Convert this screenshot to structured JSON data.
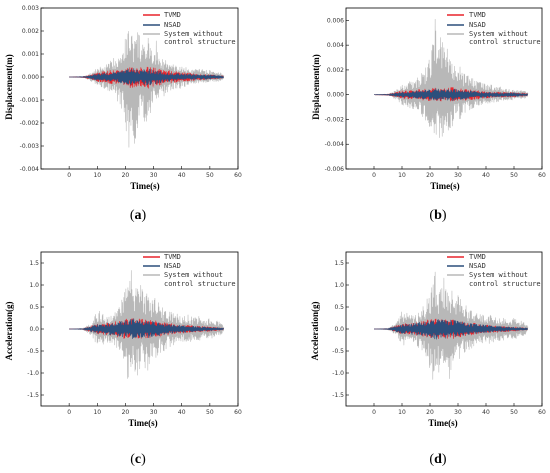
{
  "colors": {
    "tvmd": "#e8242b",
    "nsad": "#2c4f7c",
    "uncontrolled": "#b8b8b8",
    "axis": "#000000"
  },
  "chart_data": [
    {
      "type": "line",
      "panel": "a",
      "xlabel": "Time(s)",
      "ylabel": "Displacement(m)",
      "xlim": [
        -10,
        60
      ],
      "ylim": [
        -0.004,
        0.003
      ],
      "xticks": [
        0,
        10,
        20,
        30,
        40,
        50,
        60
      ],
      "xtick_labels": [
        "0",
        "10",
        "20",
        "30",
        "40",
        "50",
        "60"
      ],
      "yticks": [
        -0.004,
        -0.003,
        -0.002,
        -0.001,
        0.0,
        0.001,
        0.002,
        0.003
      ],
      "ytick_labels": [
        "-0.004",
        "-0.003",
        "-0.002",
        "-0.001",
        "0.000",
        "0.001",
        "0.002",
        "0.003"
      ],
      "legend_position": "top-right",
      "series": [
        {
          "name": "System without control structure",
          "color_key": "uncontrolled",
          "x": [
            0,
            5,
            8,
            10,
            12,
            14,
            16,
            18,
            19,
            20,
            21,
            22,
            23,
            24,
            25,
            26,
            27,
            28,
            29,
            30,
            31,
            32,
            34,
            36,
            38,
            40,
            42,
            44,
            46,
            48,
            50,
            52,
            54,
            55
          ],
          "max": [
            0.0,
            1e-05,
            0.0002,
            0.0004,
            0.0005,
            0.0006,
            0.0009,
            0.0012,
            0.0014,
            0.0018,
            0.0022,
            0.0023,
            0.0016,
            0.0021,
            0.0019,
            0.0015,
            0.0012,
            0.002,
            0.0011,
            0.0013,
            0.0016,
            0.001,
            0.0008,
            0.0006,
            0.0005,
            0.0005,
            0.0004,
            0.0003,
            0.0004,
            0.0003,
            0.0003,
            0.0002,
            0.0002,
            0.0001
          ],
          "min": [
            0.0,
            -1e-05,
            -0.0002,
            -0.0004,
            -0.0005,
            -0.0006,
            -0.0009,
            -0.0012,
            -0.0015,
            -0.002,
            -0.0034,
            -0.0025,
            -0.003,
            -0.0031,
            -0.002,
            -0.0017,
            -0.0024,
            -0.0022,
            -0.0016,
            -0.0012,
            -0.0013,
            -0.001,
            -0.0008,
            -0.0006,
            -0.0005,
            -0.0005,
            -0.0004,
            -0.0003,
            -0.0003,
            -0.0003,
            -0.0002,
            -0.0002,
            -0.0002,
            -0.0001
          ]
        },
        {
          "name": "TVMD",
          "color_key": "tvmd",
          "x": [
            0,
            5,
            8,
            10,
            15,
            20,
            22,
            25,
            28,
            30,
            35,
            40,
            45,
            50,
            55
          ],
          "max": [
            0.0,
            3e-05,
            0.0001,
            0.0002,
            0.0003,
            0.0004,
            0.0005,
            0.0004,
            0.0005,
            0.0004,
            0.0003,
            0.0002,
            0.00015,
            0.0001,
            5e-05
          ],
          "min": [
            0.0,
            -3e-05,
            -0.0001,
            -0.0002,
            -0.0003,
            -0.0004,
            -0.0005,
            -0.0004,
            -0.0005,
            -0.0004,
            -0.0003,
            -0.0002,
            -0.00015,
            -0.0001,
            -5e-05
          ]
        },
        {
          "name": "NSAD",
          "color_key": "nsad",
          "x": [
            0,
            5,
            8,
            10,
            15,
            20,
            22,
            25,
            28,
            30,
            35,
            40,
            45,
            50,
            55
          ],
          "max": [
            0.0,
            2e-05,
            8e-05,
            0.00015,
            0.0002,
            0.0003,
            0.0004,
            0.0003,
            0.0004,
            0.0003,
            0.0002,
            0.00015,
            0.0001,
            0.0001,
            4e-05
          ],
          "min": [
            0.0,
            -2e-05,
            -8e-05,
            -0.00015,
            -0.0002,
            -0.0003,
            -0.0004,
            -0.0003,
            -0.0004,
            -0.0003,
            -0.0002,
            -0.00015,
            -0.0001,
            -0.0001,
            -4e-05
          ]
        }
      ]
    },
    {
      "type": "line",
      "panel": "b",
      "xlabel": "Time(s)",
      "ylabel": "Displacement(m)",
      "xlim": [
        -10,
        60
      ],
      "ylim": [
        -0.006,
        0.007
      ],
      "xticks": [
        0,
        10,
        20,
        30,
        40,
        50,
        60
      ],
      "xtick_labels": [
        "0",
        "10",
        "20",
        "30",
        "40",
        "50",
        "60"
      ],
      "yticks": [
        -0.006,
        -0.004,
        -0.002,
        0.0,
        0.002,
        0.004,
        0.006
      ],
      "ytick_labels": [
        "-0.006",
        "-0.004",
        "-0.002",
        "0.000",
        "0.002",
        "0.004",
        "0.006"
      ],
      "legend_position": "top-right",
      "series": [
        {
          "name": "System without control structure",
          "color_key": "uncontrolled",
          "x": [
            0,
            5,
            8,
            10,
            12,
            14,
            16,
            18,
            19,
            20,
            21,
            22,
            23,
            24,
            25,
            26,
            27,
            28,
            29,
            30,
            31,
            32,
            34,
            36,
            38,
            40,
            42,
            44,
            46,
            48,
            50,
            52,
            54,
            55
          ],
          "max": [
            0.0,
            3e-05,
            0.0004,
            0.0008,
            0.001,
            0.0012,
            0.0015,
            0.002,
            0.0025,
            0.003,
            0.0045,
            0.0065,
            0.0042,
            0.005,
            0.0044,
            0.004,
            0.0028,
            0.003,
            0.0022,
            0.002,
            0.0025,
            0.0018,
            0.0015,
            0.0012,
            0.001,
            0.0009,
            0.0008,
            0.0007,
            0.0006,
            0.0005,
            0.0004,
            0.0004,
            0.0003,
            0.0002
          ],
          "min": [
            0.0,
            -3e-05,
            -0.0004,
            -0.0008,
            -0.001,
            -0.0012,
            -0.0015,
            -0.002,
            -0.0025,
            -0.003,
            -0.0035,
            -0.0043,
            -0.0033,
            -0.0042,
            -0.003,
            -0.0028,
            -0.0032,
            -0.0026,
            -0.002,
            -0.0018,
            -0.0022,
            -0.0015,
            -0.0013,
            -0.001,
            -0.0009,
            -0.0008,
            -0.0007,
            -0.0006,
            -0.0005,
            -0.0005,
            -0.0004,
            -0.0003,
            -0.0003,
            -0.0002
          ]
        },
        {
          "name": "TVMD",
          "color_key": "tvmd",
          "x": [
            0,
            5,
            8,
            10,
            15,
            20,
            22,
            25,
            28,
            30,
            35,
            40,
            45,
            50,
            55
          ],
          "max": [
            0.0,
            5e-05,
            0.0002,
            0.0003,
            0.0004,
            0.0005,
            0.0006,
            0.0005,
            0.0006,
            0.0005,
            0.0004,
            0.0003,
            0.0002,
            0.0002,
            0.0001
          ],
          "min": [
            0.0,
            -5e-05,
            -0.0002,
            -0.0003,
            -0.0004,
            -0.0005,
            -0.0006,
            -0.0005,
            -0.0006,
            -0.0005,
            -0.0004,
            -0.0003,
            -0.0002,
            -0.0002,
            -0.0001
          ]
        },
        {
          "name": "NSAD",
          "color_key": "nsad",
          "x": [
            0,
            5,
            8,
            10,
            15,
            20,
            22,
            25,
            28,
            30,
            35,
            40,
            45,
            50,
            55
          ],
          "max": [
            0.0,
            4e-05,
            0.00015,
            0.0002,
            0.0003,
            0.0004,
            0.0005,
            0.0004,
            0.0005,
            0.0004,
            0.0003,
            0.0002,
            0.00015,
            0.00015,
            8e-05
          ],
          "min": [
            0.0,
            -4e-05,
            -0.00015,
            -0.0002,
            -0.0003,
            -0.0004,
            -0.0005,
            -0.0004,
            -0.0005,
            -0.0004,
            -0.0003,
            -0.0002,
            -0.00015,
            -0.00015,
            -8e-05
          ]
        }
      ]
    },
    {
      "type": "line",
      "panel": "c",
      "xlabel": "Time(s)",
      "ylabel": "Acceleration(g)",
      "xlim": [
        -10,
        60
      ],
      "ylim": [
        -1.75,
        1.75
      ],
      "xticks": [
        0,
        10,
        20,
        30,
        40,
        50,
        60
      ],
      "xtick_labels": [
        "0",
        "10",
        "20",
        "30",
        "40",
        "50",
        "60"
      ],
      "yticks": [
        -1.5,
        -1.0,
        -0.5,
        0.0,
        0.5,
        1.0,
        1.5
      ],
      "ytick_labels": [
        "-1.5",
        "-1.0",
        "-0.5",
        "0.0",
        "0.5",
        "1.0",
        "1.5"
      ],
      "legend_position": "top-right",
      "series": [
        {
          "name": "System without control structure",
          "color_key": "uncontrolled",
          "x": [
            0,
            5,
            8,
            10,
            12,
            14,
            16,
            18,
            19,
            20,
            21,
            22,
            23,
            24,
            25,
            26,
            27,
            28,
            29,
            30,
            31,
            32,
            34,
            36,
            38,
            40,
            42,
            44,
            46,
            48,
            50,
            52,
            54,
            55
          ],
          "max": [
            0.0,
            0.02,
            0.15,
            0.45,
            0.35,
            0.3,
            0.4,
            0.55,
            0.7,
            0.9,
            1.15,
            1.4,
            0.9,
            1.1,
            1.25,
            0.95,
            0.75,
            1.05,
            0.7,
            0.85,
            0.75,
            0.6,
            0.45,
            0.4,
            0.35,
            0.3,
            0.35,
            0.25,
            0.3,
            0.2,
            0.25,
            0.2,
            0.15,
            0.05
          ],
          "min": [
            0.0,
            -0.02,
            -0.15,
            -0.4,
            -0.35,
            -0.3,
            -0.45,
            -0.6,
            -0.8,
            -1.0,
            -1.4,
            -0.85,
            -1.0,
            -1.2,
            -0.95,
            -0.8,
            -1.25,
            -0.95,
            -0.7,
            -0.85,
            -0.65,
            -0.55,
            -0.5,
            -0.4,
            -0.35,
            -0.3,
            -0.35,
            -0.25,
            -0.3,
            -0.2,
            -0.25,
            -0.2,
            -0.15,
            -0.05
          ]
        },
        {
          "name": "TVMD",
          "color_key": "tvmd",
          "x": [
            0,
            5,
            8,
            10,
            15,
            20,
            22,
            25,
            28,
            30,
            35,
            40,
            45,
            50,
            55
          ],
          "max": [
            0.0,
            0.01,
            0.08,
            0.12,
            0.15,
            0.22,
            0.25,
            0.23,
            0.22,
            0.2,
            0.14,
            0.1,
            0.07,
            0.05,
            0.02
          ],
          "min": [
            0.0,
            -0.01,
            -0.08,
            -0.12,
            -0.15,
            -0.22,
            -0.25,
            -0.23,
            -0.22,
            -0.2,
            -0.14,
            -0.1,
            -0.07,
            -0.05,
            -0.02
          ]
        },
        {
          "name": "NSAD",
          "color_key": "nsad",
          "x": [
            0,
            5,
            8,
            10,
            15,
            20,
            22,
            25,
            28,
            30,
            35,
            40,
            45,
            50,
            55
          ],
          "max": [
            0.0,
            0.01,
            0.07,
            0.1,
            0.14,
            0.2,
            0.24,
            0.22,
            0.2,
            0.18,
            0.12,
            0.09,
            0.06,
            0.04,
            0.02
          ],
          "min": [
            0.0,
            -0.01,
            -0.07,
            -0.1,
            -0.14,
            -0.2,
            -0.24,
            -0.22,
            -0.2,
            -0.18,
            -0.12,
            -0.09,
            -0.06,
            -0.04,
            -0.02
          ]
        }
      ]
    },
    {
      "type": "line",
      "panel": "d",
      "xlabel": "Time(s)",
      "ylabel": "Acceleration(g)",
      "xlim": [
        -10,
        60
      ],
      "ylim": [
        -1.75,
        1.75
      ],
      "xticks": [
        0,
        10,
        20,
        30,
        40,
        50,
        60
      ],
      "xtick_labels": [
        "0",
        "10",
        "20",
        "30",
        "40",
        "50",
        "60"
      ],
      "yticks": [
        -1.5,
        -1.0,
        -0.5,
        0.0,
        0.5,
        1.0,
        1.5
      ],
      "ytick_labels": [
        "-1.5",
        "-1.0",
        "-0.5",
        "0.0",
        "0.5",
        "1.0",
        "1.5"
      ],
      "legend_position": "top-right",
      "series": [
        {
          "name": "System without control structure",
          "color_key": "uncontrolled",
          "x": [
            0,
            5,
            8,
            10,
            12,
            14,
            16,
            18,
            19,
            20,
            21,
            22,
            23,
            24,
            25,
            26,
            27,
            28,
            29,
            30,
            31,
            32,
            34,
            36,
            38,
            40,
            42,
            44,
            46,
            48,
            50,
            52,
            54,
            55
          ],
          "max": [
            0.0,
            0.02,
            0.15,
            0.45,
            0.35,
            0.3,
            0.4,
            0.55,
            0.7,
            0.9,
            1.15,
            1.4,
            0.9,
            1.1,
            1.25,
            0.95,
            0.75,
            1.05,
            0.7,
            0.85,
            0.75,
            0.6,
            0.45,
            0.4,
            0.35,
            0.3,
            0.35,
            0.25,
            0.3,
            0.2,
            0.25,
            0.2,
            0.15,
            0.05
          ],
          "min": [
            0.0,
            -0.02,
            -0.15,
            -0.4,
            -0.35,
            -0.3,
            -0.45,
            -0.6,
            -0.8,
            -1.0,
            -1.4,
            -0.85,
            -1.0,
            -1.2,
            -0.95,
            -0.8,
            -1.25,
            -0.95,
            -0.7,
            -0.85,
            -0.65,
            -0.55,
            -0.5,
            -0.4,
            -0.35,
            -0.3,
            -0.35,
            -0.25,
            -0.3,
            -0.2,
            -0.25,
            -0.2,
            -0.15,
            -0.05
          ]
        },
        {
          "name": "TVMD",
          "color_key": "tvmd",
          "x": [
            0,
            5,
            8,
            10,
            15,
            20,
            22,
            25,
            28,
            30,
            35,
            40,
            45,
            50,
            55
          ],
          "max": [
            0.0,
            0.01,
            0.08,
            0.12,
            0.15,
            0.22,
            0.25,
            0.23,
            0.22,
            0.2,
            0.14,
            0.1,
            0.07,
            0.05,
            0.02
          ],
          "min": [
            0.0,
            -0.01,
            -0.08,
            -0.12,
            -0.15,
            -0.22,
            -0.25,
            -0.23,
            -0.22,
            -0.2,
            -0.14,
            -0.1,
            -0.07,
            -0.05,
            -0.02
          ]
        },
        {
          "name": "NSAD",
          "color_key": "nsad",
          "x": [
            0,
            5,
            8,
            10,
            15,
            20,
            22,
            25,
            28,
            30,
            35,
            40,
            45,
            50,
            55
          ],
          "max": [
            0.0,
            0.01,
            0.07,
            0.1,
            0.14,
            0.2,
            0.24,
            0.22,
            0.2,
            0.18,
            0.12,
            0.09,
            0.06,
            0.04,
            0.02
          ],
          "min": [
            0.0,
            -0.01,
            -0.07,
            -0.1,
            -0.14,
            -0.2,
            -0.24,
            -0.22,
            -0.2,
            -0.18,
            -0.12,
            -0.09,
            -0.06,
            -0.04,
            -0.02
          ]
        }
      ]
    }
  ],
  "legend": {
    "tvmd": "TVMD",
    "nsad": "NSAD",
    "uncontrolled_line1": "System without",
    "uncontrolled_line2": "control structure"
  },
  "panel_labels": {
    "a": {
      "open": "(",
      "letter": "a",
      "close": ")"
    },
    "b": {
      "open": "(",
      "letter": "b",
      "close": ")"
    },
    "c": {
      "open": "(",
      "letter": "c",
      "close": ")"
    },
    "d": {
      "open": "(",
      "letter": "d",
      "close": ")"
    }
  }
}
